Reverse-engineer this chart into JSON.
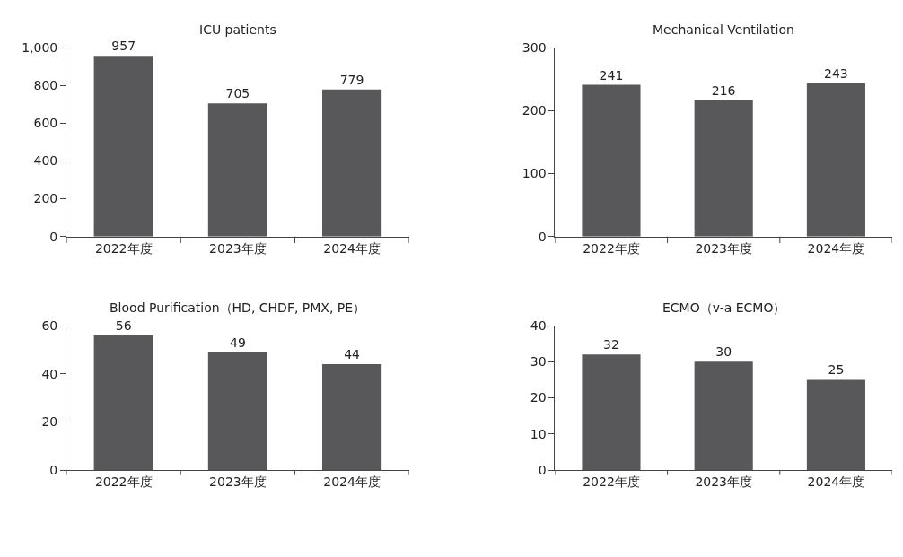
{
  "chart_data": [
    {
      "type": "bar",
      "title": "ICU patients",
      "categories": [
        "2022年度",
        "2023年度",
        "2024年度"
      ],
      "values": [
        957,
        705,
        779
      ],
      "color": "#58585a",
      "ylim": [
        0,
        1000
      ],
      "yticks": [
        0,
        200,
        400,
        600,
        800,
        {
          "value": 1000,
          "label": "1,000"
        }
      ],
      "data_labels": true
    },
    {
      "type": "bar",
      "title": "Mechanical Ventilation",
      "categories": [
        "2022年度",
        "2023年度",
        "2024年度"
      ],
      "values": [
        241,
        216,
        243
      ],
      "color": "#58585a",
      "ylim": [
        0,
        300
      ],
      "yticks": [
        0,
        100,
        200,
        300
      ],
      "data_labels": true
    },
    {
      "type": "bar",
      "title": "Blood Purification（HD, CHDF, PMX, PE）",
      "categories": [
        "2022年度",
        "2023年度",
        "2024年度"
      ],
      "values": [
        56,
        49,
        44
      ],
      "color": "#58585a",
      "ylim": [
        0,
        60
      ],
      "yticks": [
        0,
        20,
        40,
        60
      ],
      "data_labels": true
    },
    {
      "type": "bar",
      "title": "ECMO（v-a ECMO）",
      "categories": [
        "2022年度",
        "2023年度",
        "2024年度"
      ],
      "values": [
        32,
        30,
        25
      ],
      "color": "#58585a",
      "ylim": [
        0,
        40
      ],
      "yticks": [
        0,
        10,
        20,
        30,
        40
      ],
      "data_labels": true
    }
  ]
}
